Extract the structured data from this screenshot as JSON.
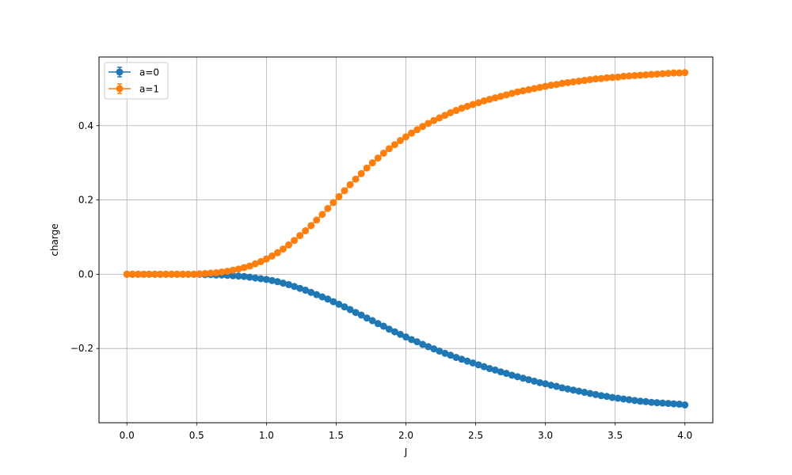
{
  "chart_data": {
    "type": "scatter",
    "xlabel": "J",
    "ylabel": "charge",
    "xlim": [
      -0.2,
      4.2
    ],
    "ylim": [
      -0.4,
      0.585
    ],
    "grid": true,
    "legend_position": "top-left",
    "x_ticks": [
      {
        "value": 0.0,
        "label": "0.0"
      },
      {
        "value": 0.5,
        "label": "0.5"
      },
      {
        "value": 1.0,
        "label": "1.0"
      },
      {
        "value": 1.5,
        "label": "1.5"
      },
      {
        "value": 2.0,
        "label": "2.0"
      },
      {
        "value": 2.5,
        "label": "2.5"
      },
      {
        "value": 3.0,
        "label": "3.0"
      },
      {
        "value": 3.5,
        "label": "3.5"
      },
      {
        "value": 4.0,
        "label": "4.0"
      }
    ],
    "y_ticks": [
      {
        "value": -0.2,
        "label": "−0.2"
      },
      {
        "value": 0.0,
        "label": "0.0"
      },
      {
        "value": 0.2,
        "label": "0.2"
      },
      {
        "value": 0.4,
        "label": "0.4"
      }
    ],
    "x": [
      0.0,
      0.04,
      0.08,
      0.12,
      0.16,
      0.2,
      0.24,
      0.28,
      0.32,
      0.36,
      0.4,
      0.44,
      0.48,
      0.52,
      0.56,
      0.6,
      0.64,
      0.68,
      0.72,
      0.76,
      0.8,
      0.84,
      0.88,
      0.92,
      0.96,
      1.0,
      1.04,
      1.08,
      1.12,
      1.16,
      1.2,
      1.24,
      1.28,
      1.32,
      1.36,
      1.4,
      1.44,
      1.48,
      1.52,
      1.56,
      1.6,
      1.64,
      1.68,
      1.72,
      1.76,
      1.8,
      1.84,
      1.88,
      1.92,
      1.96,
      2.0,
      2.04,
      2.08,
      2.12,
      2.16,
      2.2,
      2.24,
      2.28,
      2.32,
      2.36,
      2.4,
      2.44,
      2.48,
      2.52,
      2.56,
      2.6,
      2.64,
      2.68,
      2.72,
      2.76,
      2.8,
      2.84,
      2.88,
      2.92,
      2.96,
      3.0,
      3.04,
      3.08,
      3.12,
      3.16,
      3.2,
      3.24,
      3.28,
      3.32,
      3.36,
      3.4,
      3.44,
      3.48,
      3.52,
      3.56,
      3.6,
      3.64,
      3.68,
      3.72,
      3.76,
      3.8,
      3.84,
      3.88,
      3.92,
      3.96,
      4.0
    ],
    "series": [
      {
        "name": "a=0",
        "color": "#1f77b4",
        "values": [
          0.0,
          0.0,
          0.0,
          0.0,
          0.0,
          0.0,
          0.0,
          0.0,
          0.0,
          0.0,
          0.0,
          0.0,
          0.0,
          0.0,
          -0.001,
          -0.001,
          -0.002,
          -0.002,
          -0.003,
          -0.004,
          -0.005,
          -0.006,
          -0.008,
          -0.01,
          -0.012,
          -0.014,
          -0.017,
          -0.02,
          -0.024,
          -0.028,
          -0.033,
          -0.038,
          -0.043,
          -0.049,
          -0.055,
          -0.061,
          -0.067,
          -0.074,
          -0.081,
          -0.088,
          -0.095,
          -0.103,
          -0.11,
          -0.118,
          -0.125,
          -0.133,
          -0.14,
          -0.148,
          -0.155,
          -0.162,
          -0.169,
          -0.176,
          -0.182,
          -0.189,
          -0.195,
          -0.201,
          -0.207,
          -0.213,
          -0.218,
          -0.224,
          -0.229,
          -0.234,
          -0.239,
          -0.244,
          -0.249,
          -0.254,
          -0.258,
          -0.263,
          -0.267,
          -0.272,
          -0.276,
          -0.28,
          -0.284,
          -0.288,
          -0.292,
          -0.295,
          -0.299,
          -0.302,
          -0.306,
          -0.309,
          -0.312,
          -0.315,
          -0.318,
          -0.321,
          -0.324,
          -0.327,
          -0.329,
          -0.332,
          -0.334,
          -0.336,
          -0.338,
          -0.34,
          -0.342,
          -0.343,
          -0.345,
          -0.346,
          -0.347,
          -0.348,
          -0.349,
          -0.35,
          -0.352
        ]
      },
      {
        "name": "a=1",
        "color": "#ff7f0e",
        "values": [
          0.0,
          0.0,
          0.0,
          0.0,
          0.0,
          0.0,
          0.0,
          0.0,
          0.0,
          0.0,
          0.0,
          0.0,
          0.0,
          0.001,
          0.002,
          0.003,
          0.004,
          0.006,
          0.008,
          0.011,
          0.014,
          0.018,
          0.022,
          0.028,
          0.034,
          0.041,
          0.049,
          0.058,
          0.068,
          0.079,
          0.091,
          0.104,
          0.117,
          0.131,
          0.146,
          0.161,
          0.177,
          0.193,
          0.209,
          0.225,
          0.241,
          0.256,
          0.271,
          0.286,
          0.3,
          0.313,
          0.326,
          0.338,
          0.349,
          0.36,
          0.37,
          0.38,
          0.389,
          0.398,
          0.406,
          0.414,
          0.421,
          0.428,
          0.435,
          0.441,
          0.447,
          0.452,
          0.457,
          0.462,
          0.467,
          0.471,
          0.475,
          0.479,
          0.483,
          0.487,
          0.491,
          0.494,
          0.497,
          0.5,
          0.503,
          0.506,
          0.509,
          0.511,
          0.514,
          0.516,
          0.518,
          0.52,
          0.522,
          0.524,
          0.526,
          0.527,
          0.529,
          0.53,
          0.531,
          0.533,
          0.534,
          0.535,
          0.536,
          0.537,
          0.538,
          0.539,
          0.54,
          0.541,
          0.542,
          0.542,
          0.543
        ]
      }
    ]
  }
}
